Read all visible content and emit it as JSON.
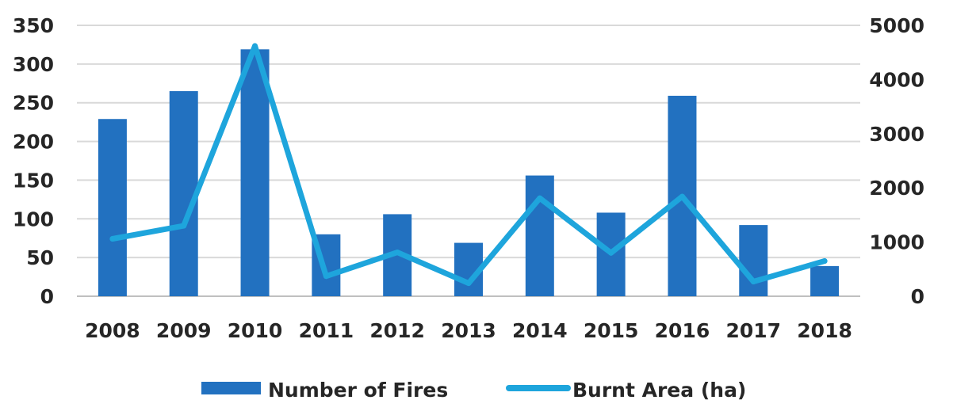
{
  "chart_data": {
    "type": "bar",
    "title": "",
    "xlabel": "",
    "ylabel": "",
    "ylabel_right": "",
    "categories": [
      "2008",
      "2009",
      "2010",
      "2011",
      "2012",
      "2013",
      "2014",
      "2015",
      "2016",
      "2017",
      "2018"
    ],
    "series": [
      {
        "name": "Number of Fires",
        "type": "bar",
        "axis": "left",
        "color": "#2271c0",
        "values": [
          229,
          265,
          319,
          80,
          106,
          69,
          156,
          108,
          259,
          92,
          39
        ]
      },
      {
        "name": "Burnt Area (ha)",
        "type": "line",
        "axis": "right",
        "color": "#1ea5dc",
        "values": [
          1060,
          1300,
          4620,
          370,
          810,
          240,
          1810,
          800,
          1840,
          270,
          650
        ]
      }
    ],
    "ylim": [
      0,
      350
    ],
    "yticks": [
      "0",
      "50",
      "100",
      "150",
      "200",
      "250",
      "300",
      "350"
    ],
    "ylim_right": [
      0,
      5000
    ],
    "yticks_right": [
      "0",
      "1000",
      "2000",
      "3000",
      "4000",
      "5000"
    ],
    "grid": true,
    "legend_position": "bottom-center"
  }
}
